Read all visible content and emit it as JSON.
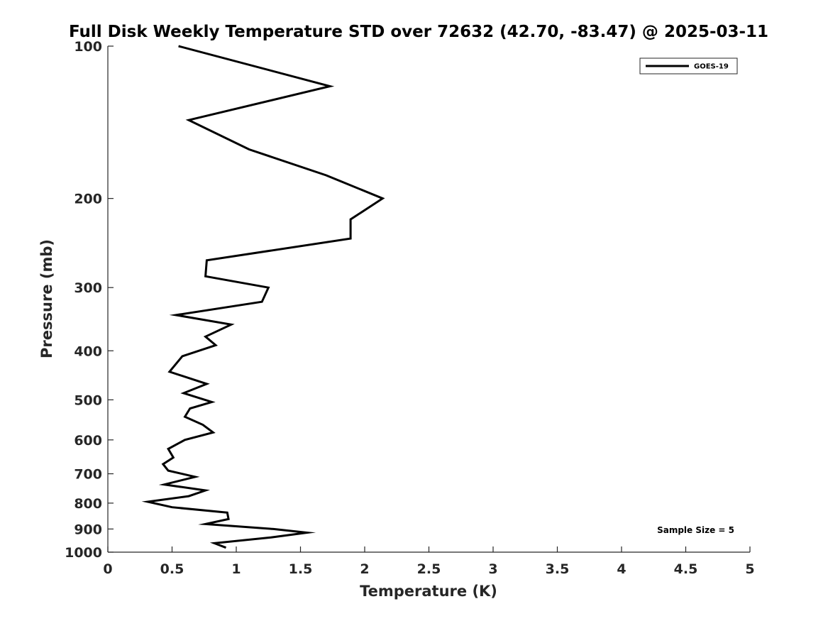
{
  "chart_data": {
    "type": "line",
    "title": "Full Disk Weekly Temperature STD over 72632 (42.70, -83.47) @ 2025-03-11",
    "xlabel": "Temperature (K)",
    "ylabel": "Pressure (mb)",
    "xlim": [
      0,
      5
    ],
    "ylim": [
      100,
      1000
    ],
    "y_scale": "log",
    "y_reversed": true,
    "x_ticks": [
      "0",
      "0.5",
      "1",
      "1.5",
      "2",
      "2.5",
      "3",
      "3.5",
      "4",
      "4.5",
      "5"
    ],
    "y_ticks": [
      "100",
      "200",
      "300",
      "400",
      "500",
      "600",
      "700",
      "800",
      "900",
      "1000"
    ],
    "grid": false,
    "legend": {
      "position": "top-right",
      "entries": [
        "GOES-19"
      ]
    },
    "annotation": "Sample Size = 5",
    "series": [
      {
        "name": "GOES-19",
        "color": "#000000",
        "points": [
          [
            0.55,
            100
          ],
          [
            1.73,
            120
          ],
          [
            0.63,
            140
          ],
          [
            1.1,
            160
          ],
          [
            1.7,
            180
          ],
          [
            2.14,
            200
          ],
          [
            1.89,
            220
          ],
          [
            1.89,
            240
          ],
          [
            0.77,
            265
          ],
          [
            0.76,
            285
          ],
          [
            1.25,
            300
          ],
          [
            1.2,
            320
          ],
          [
            0.53,
            340
          ],
          [
            0.96,
            355
          ],
          [
            0.76,
            375
          ],
          [
            0.84,
            390
          ],
          [
            0.58,
            410
          ],
          [
            0.48,
            440
          ],
          [
            0.77,
            465
          ],
          [
            0.59,
            485
          ],
          [
            0.81,
            505
          ],
          [
            0.64,
            520
          ],
          [
            0.6,
            540
          ],
          [
            0.74,
            560
          ],
          [
            0.82,
            580
          ],
          [
            0.6,
            600
          ],
          [
            0.47,
            625
          ],
          [
            0.51,
            650
          ],
          [
            0.43,
            670
          ],
          [
            0.47,
            690
          ],
          [
            0.68,
            710
          ],
          [
            0.44,
            735
          ],
          [
            0.76,
            755
          ],
          [
            0.63,
            775
          ],
          [
            0.31,
            795
          ],
          [
            0.5,
            815
          ],
          [
            0.93,
            835
          ],
          [
            0.94,
            860
          ],
          [
            0.76,
            880
          ],
          [
            1.29,
            900
          ],
          [
            1.55,
            915
          ],
          [
            1.27,
            935
          ],
          [
            0.83,
            960
          ],
          [
            0.92,
            980
          ]
        ]
      }
    ]
  }
}
